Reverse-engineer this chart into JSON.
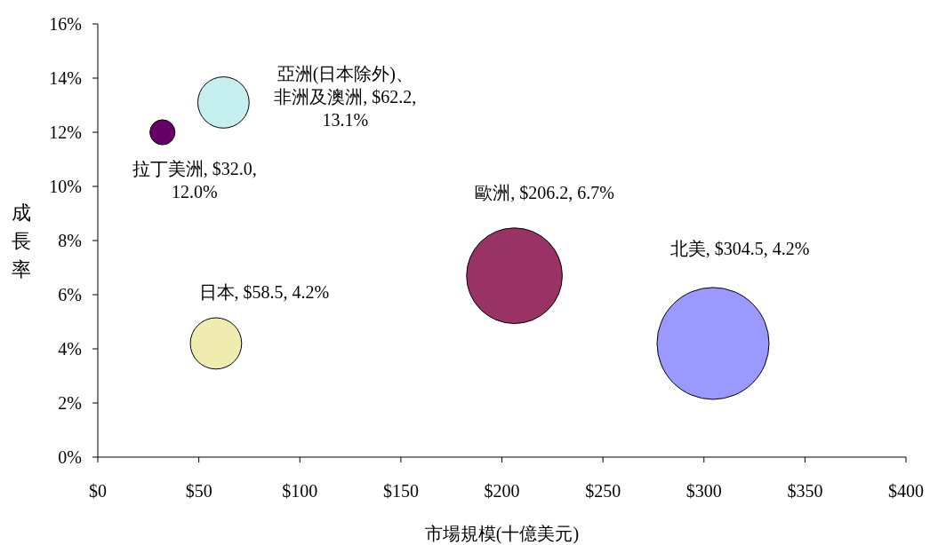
{
  "chart_data": {
    "type": "bubble",
    "xlabel": "市場規模(十億美元)",
    "ylabel": "成長率",
    "xlim": [
      0,
      400
    ],
    "xticks": [
      {
        "value": 0,
        "label": "$0"
      },
      {
        "value": 50,
        "label": "$50"
      },
      {
        "value": 100,
        "label": "$100"
      },
      {
        "value": 150,
        "label": "$150"
      },
      {
        "value": 200,
        "label": "$200"
      },
      {
        "value": 250,
        "label": "$250"
      },
      {
        "value": 300,
        "label": "$300"
      },
      {
        "value": 350,
        "label": "$350"
      },
      {
        "value": 400,
        "label": "$400"
      }
    ],
    "ylim": [
      0,
      16
    ],
    "yticks": [
      {
        "value": 0,
        "label": "0%"
      },
      {
        "value": 2,
        "label": "2%"
      },
      {
        "value": 4,
        "label": "4%"
      },
      {
        "value": 6,
        "label": "6%"
      },
      {
        "value": 8,
        "label": "8%"
      },
      {
        "value": 10,
        "label": "10%"
      },
      {
        "value": 12,
        "label": "12%"
      },
      {
        "value": 14,
        "label": "14%"
      },
      {
        "value": 16,
        "label": "16%"
      }
    ],
    "x": [
      32.0,
      62.2,
      206.2,
      304.5,
      58.5
    ],
    "values": [
      12.0,
      13.1,
      6.7,
      4.2,
      4.2
    ],
    "sizes": [
      0.05,
      0.21,
      0.73,
      1,
      0.21
    ],
    "colors": [
      "#660066",
      "#c6f0f0",
      "#993366",
      "#9999ff",
      "#f0ecb0"
    ],
    "value_labels": [
      "拉丁美洲, $32.0, 12.0%",
      "亞洲(日本除外)、非洲及澳洲, $62.2, 13.1%",
      "歐洲, $206.2, 6.7%",
      "北美, $304.5, 4.2%",
      "日本, $58.5, 4.2%"
    ],
    "grid": false
  }
}
